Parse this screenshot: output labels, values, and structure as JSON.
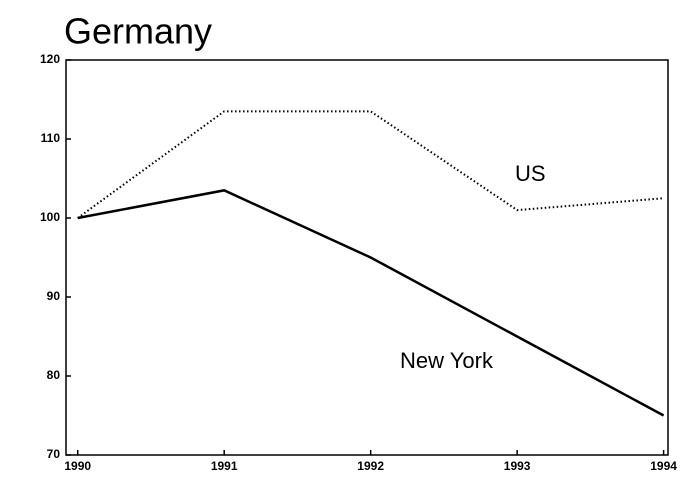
{
  "chart_data": {
    "type": "line",
    "title": "Germany",
    "x": [
      1990,
      1991,
      1992,
      1993,
      1994
    ],
    "xlim": [
      1989.92,
      1994.03
    ],
    "xticks": [
      1990,
      1991,
      1992,
      1993,
      1994
    ],
    "ylim": [
      70,
      120
    ],
    "yticks": [
      70,
      80,
      90,
      100,
      110,
      120
    ],
    "series": [
      {
        "name": "US",
        "color": "#000000",
        "dash": "dotted",
        "values": [
          100,
          113.5,
          113.5,
          101,
          102.5
        ]
      },
      {
        "name": "New York",
        "color": "#000000",
        "dash": "solid",
        "values": [
          100,
          103.5,
          95,
          85,
          75
        ]
      }
    ]
  }
}
